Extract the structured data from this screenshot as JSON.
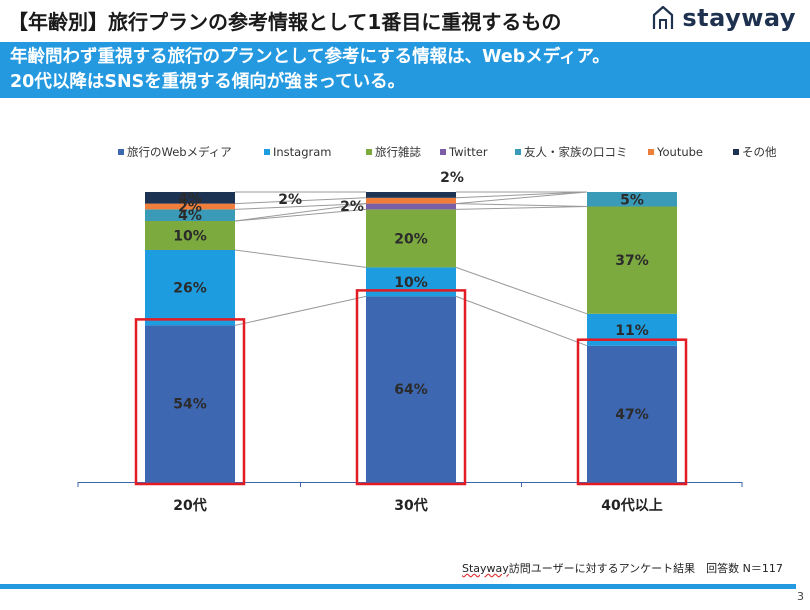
{
  "header": {
    "title": "【年齢別】旅行プランの参考情報として1番目に重視するもの",
    "logo_text": "stayway"
  },
  "banner": {
    "line1": "年齢問わず重視する旅行のプランとして参考にする情報は、Webメディア。",
    "line2": "20代以降はSNSを重視する傾向が強まっている。"
  },
  "chart_data": {
    "type": "bar",
    "stacked": true,
    "categories": [
      "20代",
      "30代",
      "40代以上"
    ],
    "series": [
      {
        "name": "旅行のWebメディア",
        "color": "#3e67b1",
        "values": [
          54,
          64,
          47
        ],
        "labels": [
          "54%",
          "64%",
          "47%"
        ]
      },
      {
        "name": "Instagram",
        "color": "#1d9ce0",
        "values": [
          26,
          10,
          11
        ],
        "labels": [
          "26%",
          "10%",
          "11%"
        ]
      },
      {
        "name": "旅行雑誌",
        "color": "#7daa3f",
        "values": [
          10,
          20,
          37
        ],
        "labels": [
          "10%",
          "20%",
          "37%"
        ]
      },
      {
        "name": "Twitter",
        "color": "#7b5ea8",
        "values": [
          0,
          2,
          0
        ],
        "labels": [
          "",
          "2%",
          ""
        ]
      },
      {
        "name": "友人・家族の口コミ",
        "color": "#3a9bb8",
        "values": [
          4,
          0,
          5
        ],
        "labels": [
          "4%",
          "",
          "5%"
        ]
      },
      {
        "name": "Youtube",
        "color": "#ef7e3a",
        "values": [
          2,
          2,
          0
        ],
        "labels": [
          "2%",
          "2%",
          ""
        ]
      },
      {
        "name": "その他",
        "color": "#1d3354",
        "values": [
          4,
          2,
          0
        ],
        "labels": [
          "4%",
          "2%",
          ""
        ]
      }
    ],
    "ylim": [
      0,
      100
    ],
    "legend_position": "top",
    "highlight": "旅行のWebメディア",
    "highlight_color": "#e31b23"
  },
  "footnote": {
    "brand": "Stayway",
    "rest": "訪問ユーザーに対するアンケート結果　回答数 N＝117"
  },
  "page_number": "3"
}
